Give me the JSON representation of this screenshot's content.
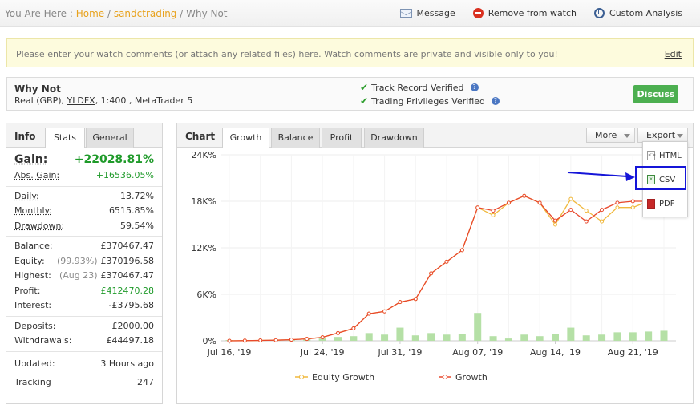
{
  "breadcrumb": {
    "prefix": "You Are Here : ",
    "home": "Home",
    "sep1": " / ",
    "section": "sandctrading",
    "sep2": " / ",
    "current": "Why Not"
  },
  "actions": {
    "message": "Message",
    "remove": "Remove from watch",
    "custom": "Custom Analysis"
  },
  "banner": {
    "text": "Please enter your watch comments (or attach any related files) here. Watch comments are private and visible only to you!",
    "edit": "Edit"
  },
  "account": {
    "name": "Why Not",
    "meta_prefix": "Real (GBP), ",
    "broker": "YLDFX",
    "meta_suffix": ", 1:400 , MetaTrader 5",
    "verified_1": "Track Record Verified",
    "verified_2": "Trading Privileges Verified",
    "discuss": "Discuss"
  },
  "info": {
    "title": "Info",
    "tab_stats": "Stats",
    "tab_general": "General",
    "gain_label": "Gain:",
    "gain_value": "+22028.81%",
    "abs_gain_label": "Abs. Gain:",
    "abs_gain_value": "+16536.05%",
    "daily_label": "Daily:",
    "daily_value": "13.72%",
    "monthly_label": "Monthly:",
    "monthly_value": "6515.85%",
    "drawdown_label": "Drawdown:",
    "drawdown_value": "59.54%",
    "balance_label": "Balance:",
    "balance_value": "£370467.47",
    "equity_label": "Equity:",
    "equity_note": "(99.93%)",
    "equity_value": "£370196.58",
    "highest_label": "Highest:",
    "highest_note": "(Aug 23)",
    "highest_value": "£370467.47",
    "profit_label": "Profit:",
    "profit_value": "£412470.28",
    "interest_label": "Interest:",
    "interest_value": "-£3795.68",
    "deposits_label": "Deposits:",
    "deposits_value": "£2000.00",
    "withdrawals_label": "Withdrawals:",
    "withdrawals_value": "£44497.18",
    "updated_label": "Updated:",
    "updated_value": "3 Hours ago",
    "tracking_label": "Tracking",
    "tracking_value": "247"
  },
  "chart_panel": {
    "title": "Chart",
    "tabs": [
      "Growth",
      "Balance",
      "Profit",
      "Drawdown"
    ],
    "more": "More",
    "export": "Export",
    "export_items": [
      "HTML",
      "CSV",
      "PDF"
    ]
  },
  "colors": {
    "growth": "#e8482c",
    "equity_growth": "#f0b83c",
    "bars": "#b5e0a6",
    "accent_green": "#4caf50",
    "link_orange": "#e8a21d",
    "highlight_blue": "#1515d8"
  },
  "chart_data": {
    "type": "line",
    "title": "",
    "xlabel": "",
    "ylabel": "",
    "ylim": [
      0,
      24000
    ],
    "y_ticks": [
      "24K%",
      "18K%",
      "12K%",
      "6K%",
      "0%"
    ],
    "y_tick_values": [
      24000,
      18000,
      12000,
      6000,
      0
    ],
    "x_tick_labels": [
      "Jul 16, '19",
      "Jul 24, '19",
      "Jul 31, '19",
      "Aug 07, '19",
      "Aug 14, '19",
      "Aug 21, '19"
    ],
    "x_tick_index": [
      0,
      6,
      11,
      16,
      21,
      26
    ],
    "legend_position": "bottom",
    "series": [
      {
        "name": "Equity Growth",
        "color": "#f0b83c",
        "values": [
          0,
          20,
          50,
          80,
          150,
          250,
          450,
          1000,
          1600,
          3500,
          3800,
          5000,
          5400,
          8700,
          10200,
          11700,
          17200,
          16200,
          17800,
          18700,
          17800,
          15000,
          18300,
          16800,
          15400,
          17200,
          17200,
          18000,
          19200
        ]
      },
      {
        "name": "Growth",
        "color": "#e8482c",
        "values": [
          0,
          20,
          50,
          80,
          150,
          250,
          450,
          1000,
          1600,
          3500,
          3800,
          5000,
          5400,
          8700,
          10200,
          11700,
          17200,
          16800,
          17800,
          18700,
          17800,
          15500,
          16900,
          15400,
          16900,
          17800,
          18000,
          18000,
          19200
        ]
      }
    ],
    "bar_values": [
      100,
      100,
      100,
      100,
      100,
      200,
      300,
      500,
      600,
      1000,
      800,
      1700,
      700,
      1000,
      800,
      900,
      3600,
      600,
      300,
      800,
      600,
      900,
      1700,
      700,
      800,
      1100,
      1100,
      1200,
      1300
    ]
  }
}
